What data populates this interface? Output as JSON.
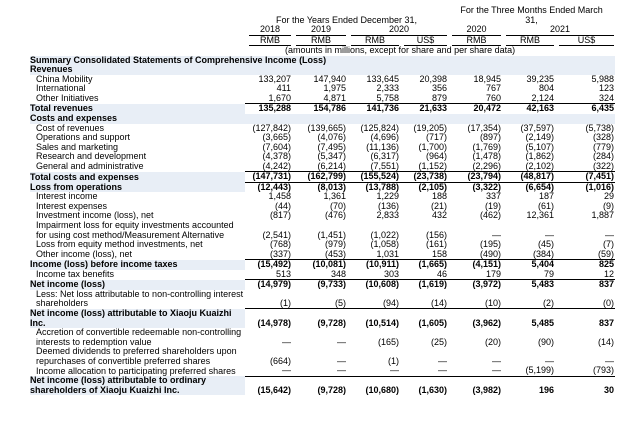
{
  "header": {
    "years_caption": "For the Years Ended December 31,",
    "quarter_caption": "For the Three Months Ended March 31,",
    "years": [
      "2018",
      "2019",
      "2020",
      "2020",
      "2021"
    ],
    "currencies": [
      "RMB",
      "RMB",
      "RMB",
      "US$",
      "RMB",
      "RMB",
      "US$"
    ],
    "note": "(amounts in millions, except for share and per share data)"
  },
  "table": {
    "rows": [
      {
        "label": "Summary Consolidated Statements of Comprehensive Income (Loss)",
        "bold": true,
        "values": []
      },
      {
        "label": "Revenues",
        "bold": true,
        "values": []
      },
      {
        "label": "China Mobility",
        "values": [
          "133,207",
          "147,940",
          "133,645",
          "20,398",
          "18,945",
          "39,235",
          "5,988"
        ]
      },
      {
        "label": "International",
        "values": [
          "411",
          "1,975",
          "2,333",
          "356",
          "767",
          "804",
          "123"
        ]
      },
      {
        "label": "Other Initiatives",
        "values": [
          "1,670",
          "4,871",
          "5,758",
          "879",
          "760",
          "2,124",
          "324"
        ]
      },
      {
        "label": "Total revenues",
        "bold": true,
        "values": [
          "135,288",
          "154,786",
          "141,736",
          "21,633",
          "20,472",
          "42,163",
          "6,435"
        ]
      },
      {
        "label": "Costs and expenses",
        "bold": true,
        "values": []
      },
      {
        "label": "Cost of revenues",
        "values": [
          "(127,842)",
          "(139,665)",
          "(125,824)",
          "(19,205)",
          "(17,354)",
          "(37,597)",
          "(5,738)"
        ]
      },
      {
        "label": "Operations and support",
        "values": [
          "(3,665)",
          "(4,076)",
          "(4,696)",
          "(717)",
          "(897)",
          "(2,149)",
          "(328)"
        ]
      },
      {
        "label": "Sales and marketing",
        "values": [
          "(7,604)",
          "(7,495)",
          "(11,136)",
          "(1,700)",
          "(1,769)",
          "(5,107)",
          "(779)"
        ]
      },
      {
        "label": "Research and development",
        "values": [
          "(4,378)",
          "(5,347)",
          "(6,317)",
          "(964)",
          "(1,478)",
          "(1,862)",
          "(284)"
        ]
      },
      {
        "label": "General and administrative",
        "values": [
          "(4,242)",
          "(6,214)",
          "(7,551)",
          "(1,152)",
          "(2,296)",
          "(2,102)",
          "(322)"
        ]
      },
      {
        "label": "Total costs and expenses",
        "bold": true,
        "values": [
          "(147,731)",
          "(162,799)",
          "(155,524)",
          "(23,738)",
          "(23,794)",
          "(48,817)",
          "(7,451)"
        ]
      },
      {
        "label": "Loss from operations",
        "bold": true,
        "values": [
          "(12,443)",
          "(8,013)",
          "(13,788)",
          "(2,105)",
          "(3,322)",
          "(6,654)",
          "(1,016)"
        ]
      },
      {
        "label": "Interest income",
        "values": [
          "1,458",
          "1,361",
          "1,229",
          "188",
          "337",
          "187",
          "29"
        ]
      },
      {
        "label": "Interest expenses",
        "values": [
          "(44)",
          "(70)",
          "(136)",
          "(21)",
          "(19)",
          "(61)",
          "(9)"
        ]
      },
      {
        "label": "Investment income (loss), net",
        "values": [
          "(817)",
          "(476)",
          "2,833",
          "432",
          "(462)",
          "12,361",
          "1,887"
        ]
      },
      {
        "label": "Impairment loss for equity investments accounted for using cost method/Measurement Alternative",
        "values": [
          "(2,541)",
          "(1,451)",
          "(1,022)",
          "(156)",
          "—",
          "—",
          "—"
        ]
      },
      {
        "label": "Loss from equity method investments, net",
        "values": [
          "(768)",
          "(979)",
          "(1,058)",
          "(161)",
          "(195)",
          "(45)",
          "(7)"
        ]
      },
      {
        "label": "Other income (loss), net",
        "values": [
          "(337)",
          "(453)",
          "1,031",
          "158",
          "(490)",
          "(384)",
          "(59)"
        ]
      },
      {
        "label": "Income (loss) before income taxes",
        "bold": true,
        "values": [
          "(15,492)",
          "(10,081)",
          "(10,911)",
          "(1,665)",
          "(4,151)",
          "5,404",
          "825"
        ]
      },
      {
        "label": "Income tax benefits",
        "values": [
          "513",
          "348",
          "303",
          "46",
          "179",
          "79",
          "12"
        ]
      },
      {
        "label": "Net income (loss)",
        "bold": true,
        "values": [
          "(14,979)",
          "(9,733)",
          "(10,608)",
          "(1,619)",
          "(3,972)",
          "5,483",
          "837"
        ]
      },
      {
        "label": "Less: Net loss attributable to non-controlling interest shareholders",
        "values": [
          "(1)",
          "(5)",
          "(94)",
          "(14)",
          "(10)",
          "(2)",
          "(0)"
        ]
      },
      {
        "label": "Net income (loss) attributable to Xiaoju Kuaizhi Inc.",
        "bold": true,
        "values": [
          "(14,978)",
          "(9,728)",
          "(10,514)",
          "(1,605)",
          "(3,962)",
          "5,485",
          "837"
        ]
      },
      {
        "label": "Accretion of convertible redeemable non-controlling interests to redemption value",
        "values": [
          "—",
          "—",
          "(165)",
          "(25)",
          "(20)",
          "(90)",
          "(14)"
        ]
      },
      {
        "label": "Deemed dividends to preferred shareholders upon repurchases of convertible preferred shares",
        "values": [
          "(664)",
          "—",
          "(1)",
          "—",
          "—",
          "—",
          "—"
        ]
      },
      {
        "label": "Income allocation to participating preferred shares",
        "values": [
          "—",
          "—",
          "—",
          "—",
          "—",
          "(5,199)",
          "(793)"
        ]
      },
      {
        "label": "Net income (loss) attributable to ordinary shareholders of Xiaoju Kuaizhi Inc.",
        "bold": true,
        "values": [
          "(15,642)",
          "(9,728)",
          "(10,680)",
          "(1,630)",
          "(3,982)",
          "196",
          "30"
        ]
      }
    ]
  }
}
